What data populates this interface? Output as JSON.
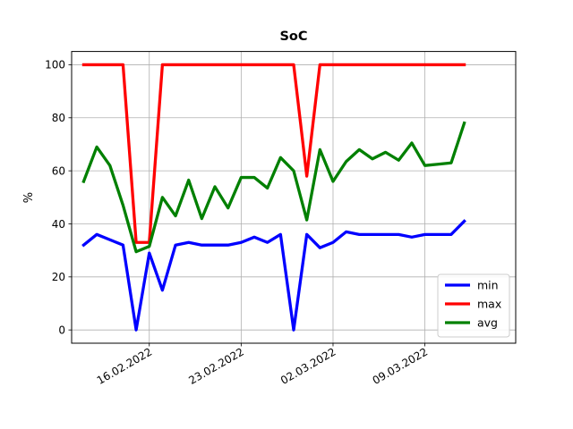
{
  "chart_data": {
    "type": "line",
    "title": "SoC",
    "xlabel": "",
    "ylabel": "%",
    "x_tick_labels": [
      "16.02.2022",
      "23.02.2022",
      "02.03.2022",
      "09.03.2022"
    ],
    "x_tick_dates": [
      "2022-02-16",
      "2022-02-23",
      "2022-03-02",
      "2022-03-09"
    ],
    "y_ticks": [
      0,
      20,
      40,
      60,
      80,
      100
    ],
    "ylim": [
      -5,
      105
    ],
    "xlim": [
      "2022-02-10 02:00",
      "2022-03-15 22:00"
    ],
    "grid": true,
    "legend_position": "lower right",
    "x": [
      "2022-02-11",
      "2022-02-12",
      "2022-02-13",
      "2022-02-14",
      "2022-02-15",
      "2022-02-16",
      "2022-02-17",
      "2022-02-18",
      "2022-02-19",
      "2022-02-20",
      "2022-02-21",
      "2022-02-22",
      "2022-02-23",
      "2022-02-24",
      "2022-02-25",
      "2022-02-26",
      "2022-02-27",
      "2022-02-28",
      "2022-03-01",
      "2022-03-02",
      "2022-03-03",
      "2022-03-04",
      "2022-03-05",
      "2022-03-06",
      "2022-03-07",
      "2022-03-08",
      "2022-03-09",
      "2022-03-10",
      "2022-03-11",
      "2022-03-12"
    ],
    "series": [
      {
        "name": "min",
        "color": "#0000ff",
        "values": [
          32,
          36,
          34,
          32,
          0,
          29,
          15,
          32,
          33,
          32,
          32,
          32,
          33,
          35,
          33,
          36,
          0,
          36,
          31,
          33,
          37,
          36,
          36,
          36,
          36,
          35,
          36,
          36,
          36,
          41
        ]
      },
      {
        "name": "max",
        "color": "#ff0000",
        "values": [
          100,
          100,
          100,
          100,
          33,
          33,
          100,
          100,
          100,
          100,
          100,
          100,
          100,
          100,
          100,
          100,
          100,
          58,
          100,
          100,
          100,
          100,
          100,
          100,
          100,
          100,
          100,
          100,
          100,
          100
        ]
      },
      {
        "name": "avg",
        "color": "#008000",
        "values": [
          56,
          69,
          62,
          47,
          29.5,
          31.5,
          50,
          43,
          56.5,
          42,
          54,
          46,
          57.5,
          57.5,
          53.5,
          65,
          60,
          41.5,
          68,
          56,
          63.5,
          68,
          64.5,
          67,
          64,
          70.5,
          62,
          62.5,
          63,
          78
        ]
      }
    ]
  }
}
